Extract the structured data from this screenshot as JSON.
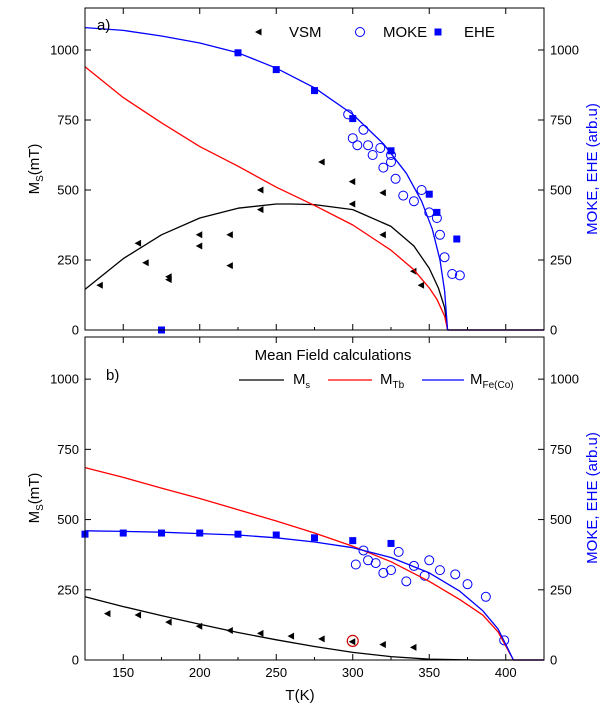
{
  "chart_data": [
    {
      "type": "scatter",
      "panel_label": "a)",
      "xlim": [
        125,
        425
      ],
      "ylim": [
        0,
        1150
      ],
      "y2lim": [
        0,
        1150
      ],
      "ylabel": "M_s(mT)",
      "ylabel_main": "M",
      "ylabel_sub": "S",
      "ylabel_rest": "(mT)",
      "y2label": "MOKE, EHE (arb.u)",
      "y2label_color": "#0000ff",
      "y_ticks": [
        0,
        250,
        500,
        750,
        1000
      ],
      "y2_ticks": [
        0,
        250,
        500,
        750,
        1000
      ],
      "x_ticks": [
        150,
        200,
        250,
        300,
        350,
        400
      ],
      "legend": {
        "position": "top",
        "entries": [
          {
            "label": "VSM",
            "marker": "triangle-left",
            "color": "#000000"
          },
          {
            "label": "MOKE",
            "marker": "circle-open",
            "color": "#0000ff"
          },
          {
            "label": "EHE",
            "marker": "square",
            "color": "#0000ff"
          }
        ]
      },
      "series": [
        {
          "name": "VSM",
          "kind": "points",
          "marker": "triangle-left",
          "color": "#000000",
          "x": [
            135,
            160,
            165,
            180,
            180,
            200,
            200,
            220,
            220,
            240,
            240,
            280,
            300,
            300,
            320,
            320,
            340,
            345
          ],
          "y": [
            160,
            310,
            240,
            190,
            180,
            340,
            300,
            230,
            340,
            430,
            500,
            600,
            530,
            450,
            490,
            340,
            210,
            160
          ]
        },
        {
          "name": "MOKE",
          "kind": "points",
          "marker": "circle-open",
          "color": "#0000ff",
          "x": [
            297,
            300,
            303,
            307,
            310,
            313,
            318,
            320,
            325,
            325,
            328,
            333,
            340,
            345,
            350,
            355,
            357,
            360,
            365,
            370
          ],
          "y": [
            770,
            685,
            660,
            715,
            660,
            625,
            650,
            580,
            625,
            600,
            540,
            480,
            460,
            500,
            420,
            400,
            340,
            260,
            200,
            195
          ]
        },
        {
          "name": "EHE",
          "kind": "points",
          "marker": "square",
          "color": "#0000ff",
          "x": [
            175,
            225,
            250,
            275,
            300,
            325,
            350,
            355,
            368
          ],
          "y": [
            0,
            990,
            930,
            855,
            755,
            640,
            485,
            420,
            325
          ]
        },
        {
          "kind": "line",
          "color": "#000000",
          "x": [
            125,
            150,
            175,
            200,
            225,
            250,
            260,
            275,
            300,
            325,
            340,
            350,
            356,
            360,
            362,
            425
          ],
          "y": [
            145,
            255,
            340,
            400,
            435,
            450,
            450,
            448,
            430,
            370,
            300,
            220,
            150,
            80,
            0,
            0
          ]
        },
        {
          "kind": "line",
          "color": "#ff0000",
          "x": [
            125,
            150,
            175,
            200,
            225,
            250,
            275,
            300,
            325,
            340,
            350,
            355,
            360,
            362,
            425
          ],
          "y": [
            940,
            830,
            740,
            655,
            585,
            510,
            445,
            375,
            285,
            215,
            150,
            110,
            50,
            0,
            0
          ]
        },
        {
          "kind": "line",
          "color": "#0000ff",
          "x": [
            125,
            150,
            175,
            200,
            225,
            250,
            275,
            300,
            320,
            335,
            345,
            352,
            357,
            360,
            362,
            425
          ],
          "y": [
            1080,
            1070,
            1050,
            1025,
            990,
            935,
            865,
            770,
            665,
            560,
            460,
            360,
            250,
            140,
            0,
            0
          ]
        }
      ]
    },
    {
      "type": "scatter",
      "panel_label": "b)",
      "xlim": [
        125,
        425
      ],
      "ylim": [
        0,
        1150
      ],
      "y2lim": [
        0,
        1150
      ],
      "xlabel": "T(K)",
      "ylabel": "M_s(mT)",
      "ylabel_main": "M",
      "ylabel_sub": "S",
      "ylabel_rest": "(mT)",
      "y2label": "MOKE, EHE (arb.u)",
      "y2label_color": "#0000ff",
      "y_ticks": [
        0,
        250,
        500,
        750,
        1000
      ],
      "y2_ticks": [
        0,
        250,
        500,
        750,
        1000
      ],
      "x_ticks": [
        150,
        200,
        250,
        300,
        350,
        400
      ],
      "legend": {
        "position": "top",
        "title": "Mean Field calculations",
        "entries": [
          {
            "label_main": "M",
            "label_sub": "s",
            "color": "#000000"
          },
          {
            "label_main": "M",
            "label_sub": "Tb",
            "color": "#ff0000"
          },
          {
            "label_main": "M",
            "label_sub": "Fe(Co)",
            "color": "#0000ff"
          }
        ]
      },
      "series": [
        {
          "name": "VSM",
          "kind": "points",
          "marker": "triangle-left",
          "color": "#000000",
          "x": [
            140,
            160,
            180,
            200,
            220,
            240,
            260,
            280,
            300,
            320,
            340
          ],
          "y": [
            165,
            160,
            135,
            120,
            105,
            95,
            85,
            75,
            65,
            55,
            45
          ]
        },
        {
          "name": "MOKE",
          "kind": "points",
          "marker": "circle-open",
          "color": "#0000ff",
          "x": [
            302,
            307,
            310,
            315,
            320,
            325,
            330,
            335,
            340,
            347,
            350,
            357,
            367,
            375,
            387,
            399
          ],
          "y": [
            340,
            390,
            355,
            345,
            310,
            320,
            385,
            280,
            335,
            300,
            355,
            320,
            305,
            270,
            225,
            70
          ]
        },
        {
          "name": "EHE",
          "kind": "points",
          "marker": "square",
          "color": "#0000ff",
          "x": [
            125,
            150,
            175,
            200,
            225,
            250,
            275,
            300,
            325
          ],
          "y": [
            448,
            452,
            452,
            452,
            448,
            445,
            435,
            425,
            415
          ]
        },
        {
          "kind": "line",
          "color": "#000000",
          "x": [
            125,
            150,
            175,
            200,
            225,
            250,
            275,
            300,
            325,
            350,
            380,
            405,
            425
          ],
          "y": [
            225,
            190,
            158,
            127,
            98,
            72,
            48,
            27,
            12,
            3,
            0,
            0,
            0
          ]
        },
        {
          "kind": "line",
          "color": "#ff0000",
          "x": [
            125,
            150,
            175,
            200,
            225,
            250,
            275,
            300,
            325,
            350,
            370,
            385,
            395,
            401,
            405,
            425
          ],
          "y": [
            685,
            650,
            612,
            575,
            535,
            495,
            452,
            405,
            350,
            280,
            215,
            160,
            100,
            40,
            0,
            0
          ]
        },
        {
          "kind": "line",
          "color": "#0000ff",
          "x": [
            125,
            150,
            175,
            200,
            225,
            250,
            275,
            300,
            325,
            350,
            370,
            385,
            395,
            401,
            405,
            425
          ],
          "y": [
            460,
            458,
            455,
            450,
            445,
            435,
            420,
            400,
            365,
            310,
            245,
            175,
            110,
            45,
            0,
            0
          ]
        }
      ],
      "annotations": [
        {
          "type": "circle",
          "x": 300,
          "y": 68,
          "color": "#cc0000"
        }
      ]
    }
  ]
}
